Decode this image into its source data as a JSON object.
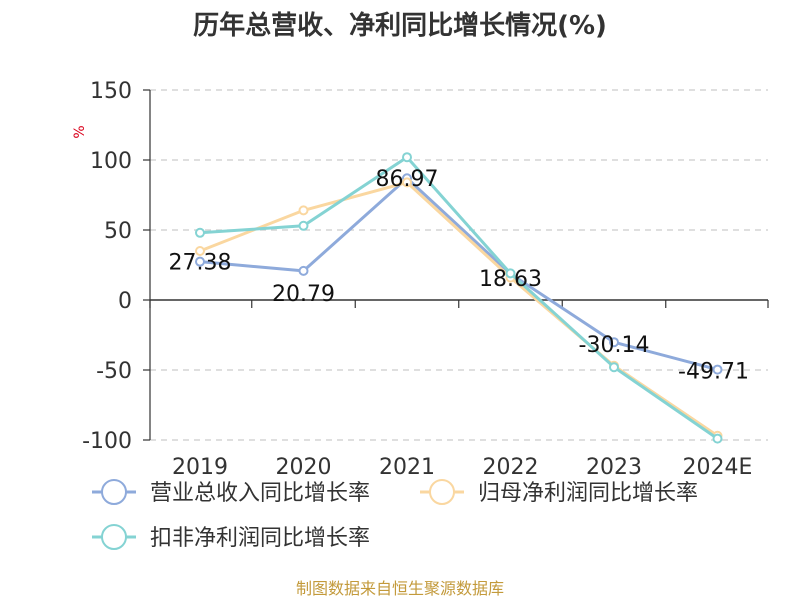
{
  "chart_data": {
    "type": "line",
    "title": "历年总营收、净利同比增长情况(%)",
    "ylabel": "%",
    "xlabel": "",
    "ylim": [
      -100,
      150
    ],
    "yticks": [
      150,
      100,
      50,
      0,
      -50,
      -100
    ],
    "grid": true,
    "legend_position": "bottom-left",
    "categories": [
      "2019",
      "2020",
      "2021",
      "2022",
      "2023",
      "2024E"
    ],
    "series": [
      {
        "name": "营业总收入同比增长率",
        "color": "#8eaadb",
        "values": [
          27.38,
          20.79,
          86.97,
          18.63,
          -30.14,
          -49.71
        ],
        "labels": [
          "27.38",
          "20.79",
          "86.97",
          "18.63",
          "-30.14",
          "-49.71"
        ]
      },
      {
        "name": "归母净利润同比增长率",
        "color": "#fad7a0",
        "values": [
          35,
          64,
          84,
          16,
          -47,
          -97
        ],
        "labels": []
      },
      {
        "name": "扣非净利润同比增长率",
        "color": "#84d3d3",
        "values": [
          48,
          53,
          102,
          19,
          -48,
          -99
        ],
        "labels": []
      }
    ]
  },
  "source": "制图数据来自恒生聚源数据库"
}
